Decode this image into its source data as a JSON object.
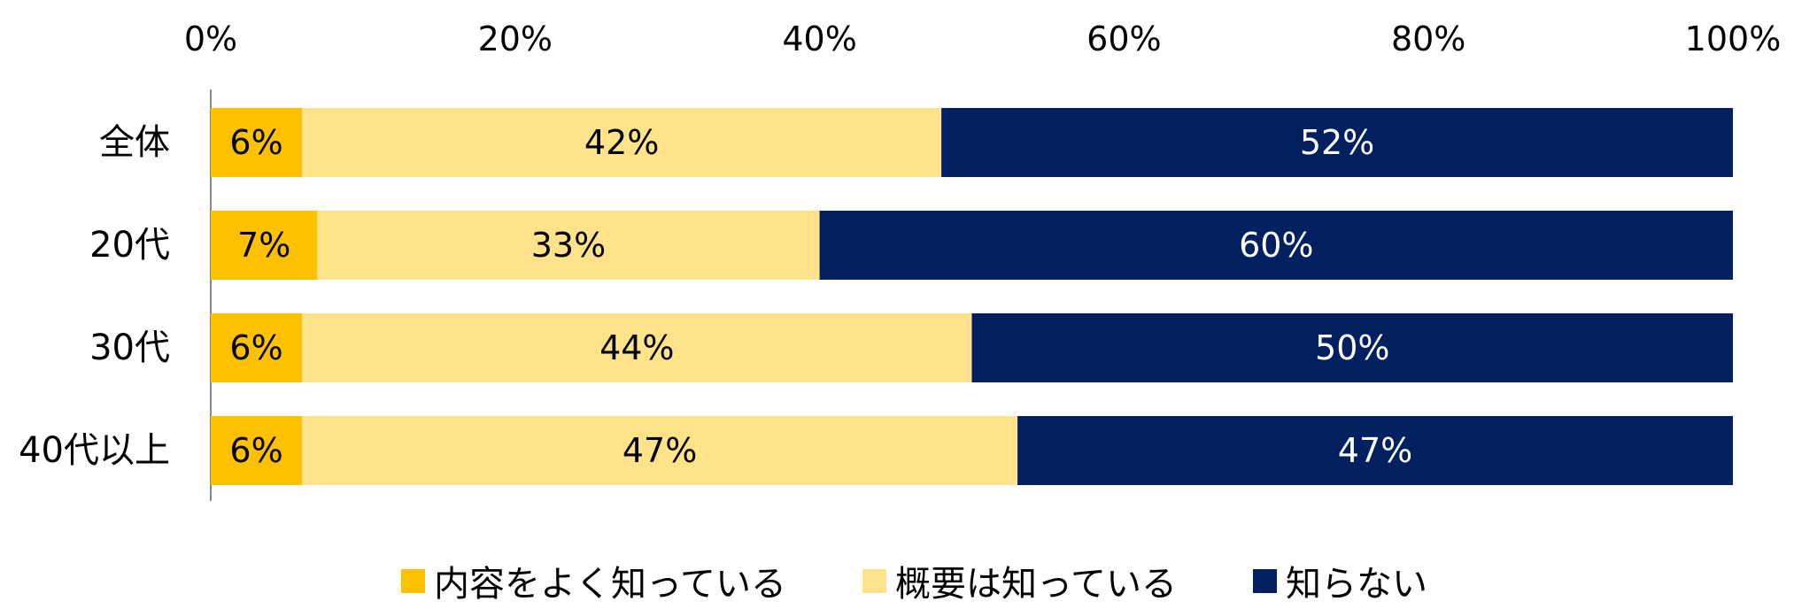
{
  "chart_data": {
    "type": "bar",
    "orientation": "horizontal",
    "stacked": true,
    "categories": [
      "全体",
      "20代",
      "30代",
      "40代以上"
    ],
    "series": [
      {
        "name": "内容をよく知っている",
        "color": "#FFC000",
        "values": [
          6,
          7,
          6,
          6
        ],
        "labels": [
          "6%",
          "7%",
          "6%",
          "6%"
        ],
        "label_color": "#000000"
      },
      {
        "name": "概要は知っている",
        "color": "#FFE38B",
        "values": [
          42,
          33,
          44,
          47
        ],
        "labels": [
          "42%",
          "33%",
          "44%",
          "47%"
        ],
        "label_color": "#000000"
      },
      {
        "name": "知らない",
        "color": "#002060",
        "values": [
          52,
          60,
          50,
          47
        ],
        "labels": [
          "52%",
          "60%",
          "50%",
          "47%"
        ],
        "label_color": "#FFFFFF"
      }
    ],
    "xlim": [
      0,
      100
    ],
    "xticks": [
      "0%",
      "20%",
      "40%",
      "60%",
      "80%",
      "100%"
    ],
    "xaxis_position": "top",
    "grid": false,
    "legend_position": "bottom"
  }
}
